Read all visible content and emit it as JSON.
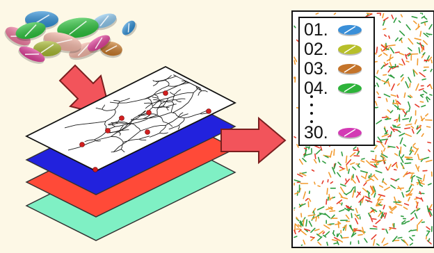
{
  "colors": {
    "background": "#fdf8e6",
    "arrow_fill": "#f2545b",
    "arrow_stroke": "#7a1f1f",
    "layer_blue": "#2222dd",
    "layer_red": "#ff4a38",
    "layer_mint": "#7ff0c4",
    "stream_line": "#1a1a1a",
    "site_marker": "#d11f1f",
    "map_orange": "#f29a2e",
    "map_red": "#e53a2a",
    "map_green": "#2e9c3f"
  },
  "pills": [
    {
      "name": "blue",
      "color": "#2f8fd6"
    },
    {
      "name": "green",
      "color": "#2cc23c"
    },
    {
      "name": "light-blue",
      "color": "#8ec8ee"
    },
    {
      "name": "pink",
      "color": "#f07aa0"
    },
    {
      "name": "magenta",
      "color": "#e0409a"
    },
    {
      "name": "olive",
      "color": "#a6b830"
    },
    {
      "name": "brown",
      "color": "#c87a2a"
    },
    {
      "name": "salmon",
      "color": "#f5b8a8"
    }
  ],
  "legend": {
    "items": [
      {
        "label": "01.",
        "color": "#3a8fd8"
      },
      {
        "label": "02.",
        "color": "#b7bf2a"
      },
      {
        "label": "03.",
        "color": "#c4742a"
      },
      {
        "label": "04.",
        "color": "#2db33a"
      },
      {
        "label": "30.",
        "color": "#d33ab4"
      }
    ]
  }
}
